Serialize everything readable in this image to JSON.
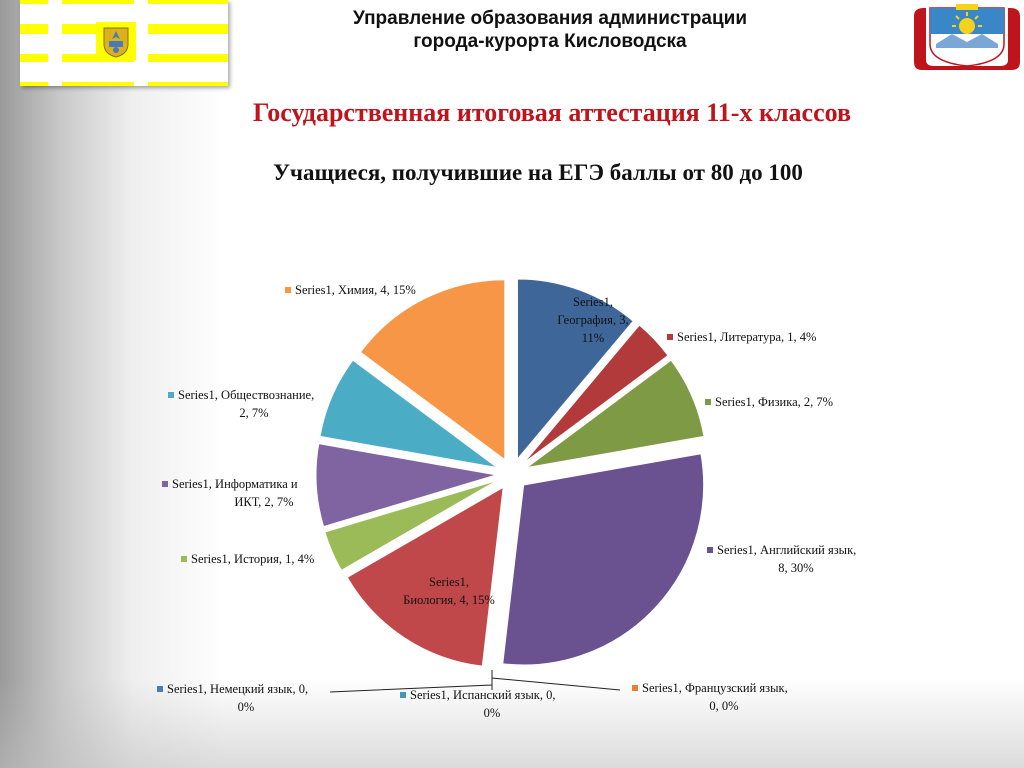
{
  "header": {
    "org_line1": "Управление образования администрации",
    "org_line2": "города-курорта Кисловодска"
  },
  "title": "Государственная итоговая аттестация 11-х классов",
  "subtitle": "Учащиеся, получившие на ЕГЭ баллы от 80 до 100",
  "colors": {
    "title_red": "#c0141c",
    "flag_yellow": "#ffff00",
    "coat_red": "#c0141c"
  },
  "chart_data": {
    "type": "pie",
    "exploded": true,
    "legend": "none",
    "series": [
      {
        "name": "Series1",
        "points": [
          {
            "category": "География",
            "value": 3,
            "percent": "11%",
            "color": "#3f6698",
            "label_lines": [
              "Series1,",
              "География, 3,",
              "11%"
            ]
          },
          {
            "category": "Литература",
            "value": 1,
            "percent": "4%",
            "color": "#b33a3a",
            "label_lines": [
              "Series1, Литература, 1, 4%"
            ]
          },
          {
            "category": "Физика",
            "value": 2,
            "percent": "7%",
            "color": "#7f9a44",
            "label_lines": [
              "Series1, Физика, 2, 7%"
            ]
          },
          {
            "category": "Английский язык",
            "value": 8,
            "percent": "30%",
            "color": "#6a5190",
            "label_lines": [
              "Series1, Английский язык,",
              "8, 30%"
            ]
          },
          {
            "category": "Французский язык",
            "value": 0,
            "percent": "0%",
            "color": "#e3813a",
            "label_lines": [
              "Series1, Французский язык,",
              "0, 0%"
            ]
          },
          {
            "category": "Испанский язык",
            "value": 0,
            "percent": "0%",
            "color": "#3f9ab5",
            "label_lines": [
              "Series1, Испанский язык, 0,",
              "0%"
            ]
          },
          {
            "category": "Немецкий язык",
            "value": 0,
            "percent": "0%",
            "color": "#4a7ab8",
            "label_lines": [
              "Series1, Немецкий язык, 0,",
              "0%"
            ]
          },
          {
            "category": "Биология",
            "value": 4,
            "percent": "15%",
            "color": "#c0484a",
            "label_lines": [
              "Series1,",
              "Биология, 4, 15%"
            ]
          },
          {
            "category": "История",
            "value": 1,
            "percent": "4%",
            "color": "#9bbb59",
            "label_lines": [
              "Series1, История, 1, 4%"
            ]
          },
          {
            "category": "Информатика и ИКТ",
            "value": 2,
            "percent": "7%",
            "color": "#8064a2",
            "label_lines": [
              "Series1, Информатика и",
              "ИКТ, 2, 7%"
            ]
          },
          {
            "category": "Обществознание",
            "value": 2,
            "percent": "7%",
            "color": "#4bacc6",
            "label_lines": [
              "Series1, Обществознание,",
              "2, 7%"
            ]
          },
          {
            "category": "Химия",
            "value": 4,
            "percent": "15%",
            "color": "#f79646",
            "label_lines": [
              "Series1, Химия, 4, 15%"
            ]
          }
        ]
      }
    ]
  }
}
